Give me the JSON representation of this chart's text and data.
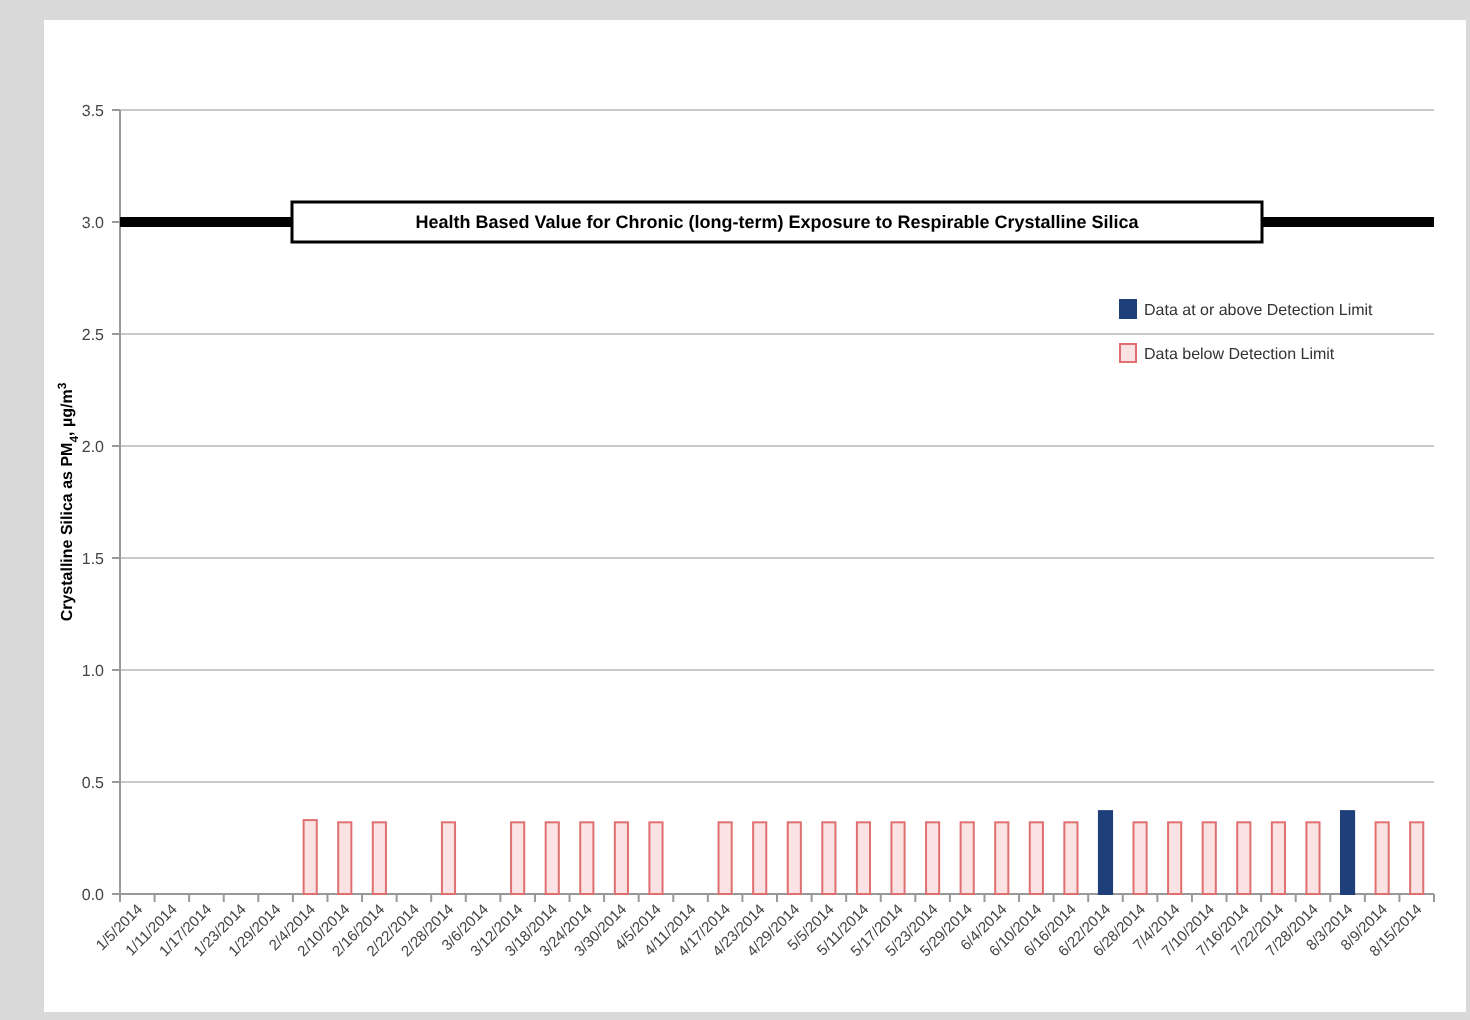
{
  "chart_data": {
    "type": "bar",
    "ylabel": "Crystalline Silica as PM$_{4}$, µg/m$^{3}$",
    "categories": [
      "1/5/2014",
      "1/11/2014",
      "1/17/2014",
      "1/23/2014",
      "1/29/2014",
      "2/4/2014",
      "2/10/2014",
      "2/16/2014",
      "2/22/2014",
      "2/28/2014",
      "3/6/2014",
      "3/12/2014",
      "3/18/2014",
      "3/24/2014",
      "3/30/2014",
      "4/5/2014",
      "4/11/2014",
      "4/17/2014",
      "4/23/2014",
      "4/29/2014",
      "5/5/2014",
      "5/11/2014",
      "5/17/2014",
      "5/23/2014",
      "5/29/2014",
      "6/4/2014",
      "6/10/2014",
      "6/16/2014",
      "6/22/2014",
      "6/28/2014",
      "7/4/2014",
      "7/10/2014",
      "7/16/2014",
      "7/22/2014",
      "7/28/2014",
      "8/3/2014",
      "8/9/2014",
      "8/15/2014"
    ],
    "series": [
      {
        "name": "Data at or above Detection Limit",
        "color": "#1f3f7a",
        "values": [
          null,
          null,
          null,
          null,
          null,
          null,
          null,
          null,
          null,
          null,
          null,
          null,
          null,
          null,
          null,
          null,
          null,
          null,
          null,
          null,
          null,
          null,
          null,
          null,
          null,
          null,
          null,
          null,
          0.37,
          null,
          null,
          null,
          null,
          null,
          null,
          0.37,
          null,
          null
        ]
      },
      {
        "name": "Data below Detection Limit",
        "color": "#e07070",
        "values": [
          null,
          null,
          null,
          null,
          null,
          0.33,
          0.32,
          0.32,
          null,
          0.32,
          null,
          0.32,
          0.32,
          0.32,
          0.32,
          0.32,
          null,
          0.32,
          0.32,
          0.32,
          0.32,
          0.32,
          0.32,
          0.32,
          0.32,
          0.32,
          0.32,
          0.32,
          null,
          0.32,
          0.32,
          0.32,
          0.32,
          0.32,
          0.32,
          null,
          0.32,
          0.32
        ]
      }
    ],
    "ylim": [
      0,
      3.5
    ],
    "yticks": [
      {
        "value": 0,
        "label": "0.0"
      },
      {
        "value": 0.5,
        "label": "0.5"
      },
      {
        "value": 1,
        "label": "1.0"
      },
      {
        "value": 1.5,
        "label": "1.5"
      },
      {
        "value": 2,
        "label": "2.0"
      },
      {
        "value": 2.5,
        "label": "2.5"
      },
      {
        "value": 3,
        "label": "3.0"
      },
      {
        "value": 3.5,
        "label": "3.5"
      }
    ],
    "ref_lines": [
      {
        "axis": "y",
        "value": 3,
        "label": "Health Based Value for Chronic (long-term) Exposure to Respirable Crystalline Silica",
        "color": "#000000"
      }
    ],
    "grid": "y",
    "legend": "right"
  }
}
